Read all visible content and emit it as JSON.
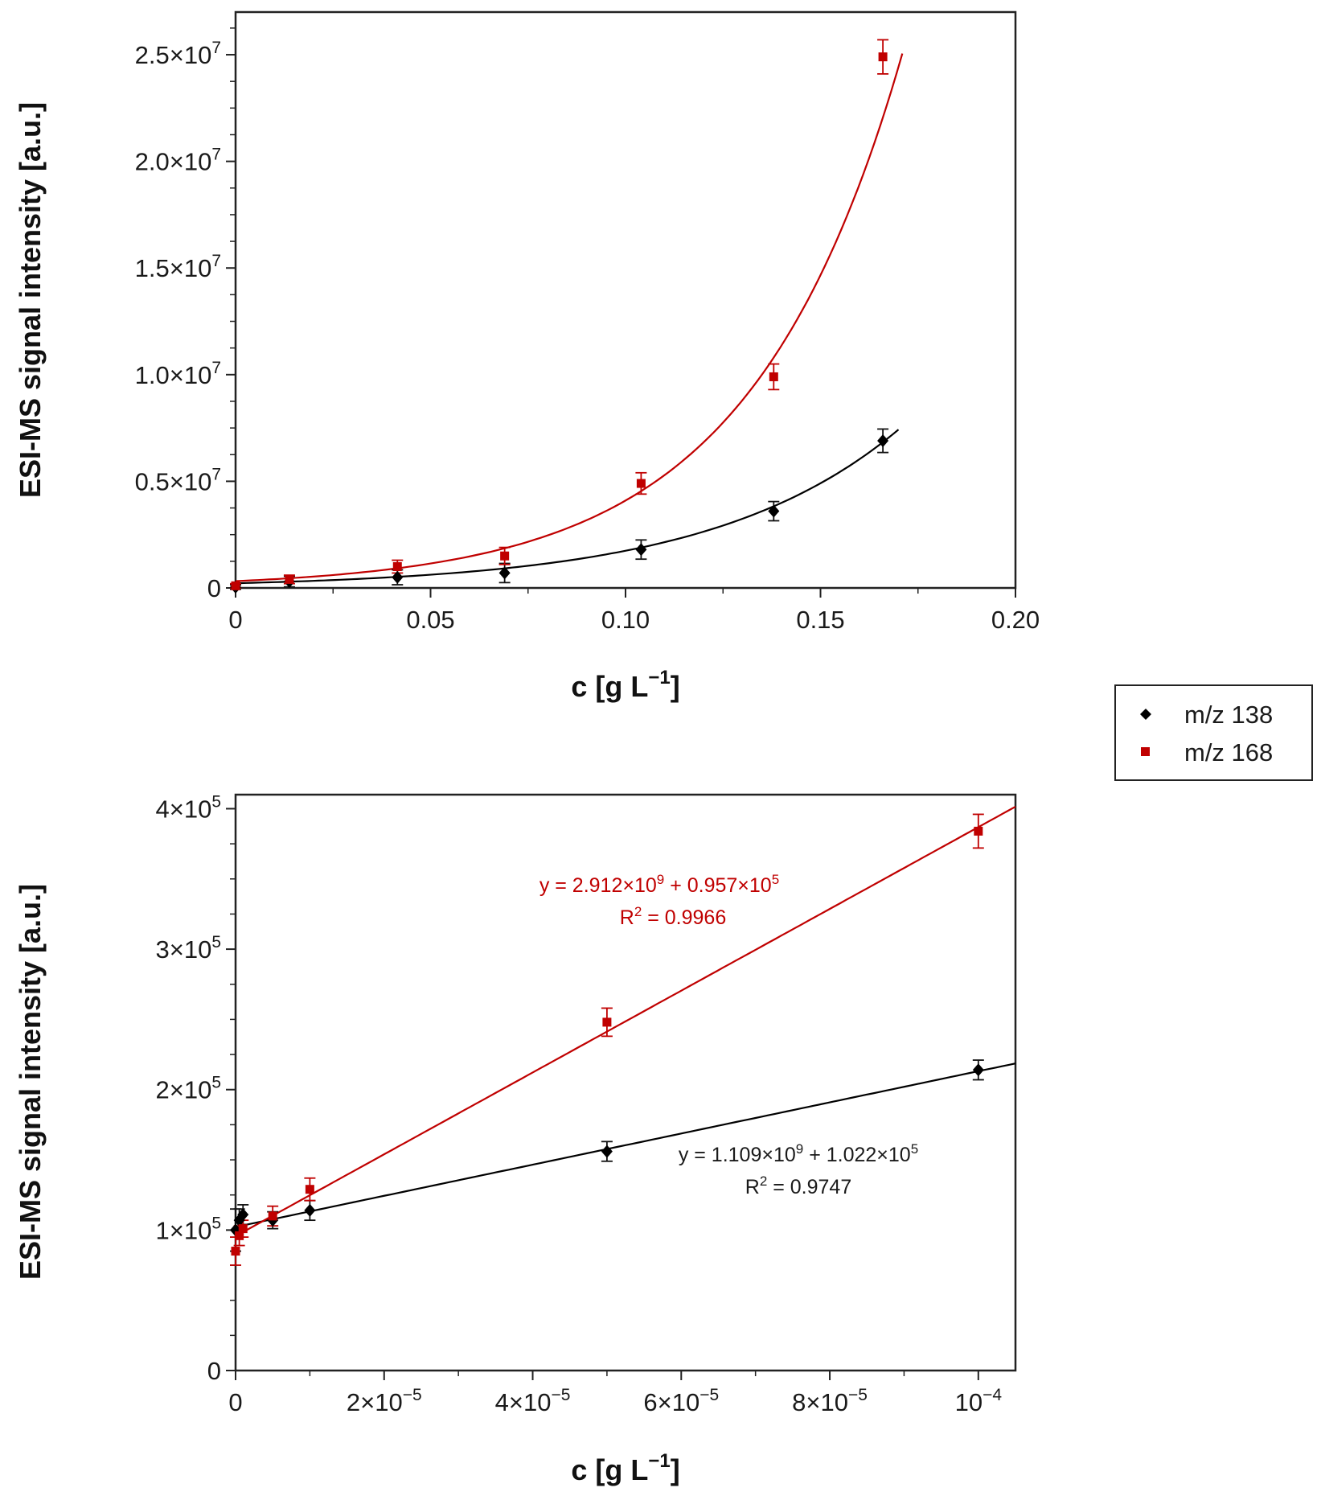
{
  "legend": [
    {
      "label": "m/z 138",
      "color": "#000000",
      "marker": "diamond"
    },
    {
      "label": "m/z 168",
      "color": "#c00000",
      "marker": "square"
    }
  ],
  "chart_data": [
    {
      "type": "scatter",
      "title": "",
      "xlabel": "c [g L",
      "xlabel_sup": "−1",
      "xlabel_end": "]",
      "ylabel": "ESI-MS signal intensity [a.u.]",
      "xlim": [
        0,
        0.2
      ],
      "ylim": [
        0,
        27000000
      ],
      "xticks": [
        {
          "v": 0,
          "label": "0"
        },
        {
          "v": 0.05,
          "label": "0.05"
        },
        {
          "v": 0.1,
          "label": "0.10"
        },
        {
          "v": 0.15,
          "label": "0.15"
        },
        {
          "v": 0.2,
          "label": "0.20"
        }
      ],
      "yticks": [
        {
          "v": 0,
          "base": "0",
          "exp": ""
        },
        {
          "v": 5000000,
          "base": "0.5×10",
          "exp": "7"
        },
        {
          "v": 10000000,
          "base": "1.0×10",
          "exp": "7"
        },
        {
          "v": 15000000,
          "base": "1.5×10",
          "exp": "7"
        },
        {
          "v": 20000000,
          "base": "2.0×10",
          "exp": "7"
        },
        {
          "v": 25000000,
          "base": "2.5×10",
          "exp": "7"
        }
      ],
      "series": [
        {
          "name": "m/z 138",
          "color": "#000000",
          "marker": "diamond",
          "x": [
            0,
            0.0138,
            0.0415,
            0.069,
            0.104,
            0.138,
            0.166
          ],
          "y": [
            40000,
            300000,
            500000,
            700000,
            1800000,
            3600000,
            6900000
          ],
          "err": [
            100000,
            250000,
            350000,
            450000,
            450000,
            450000,
            550000
          ],
          "fit": {
            "type": "exp",
            "a": 220000,
            "b": 20.7,
            "xmax": 0.17
          }
        },
        {
          "name": "m/z 168",
          "color": "#c00000",
          "marker": "square",
          "x": [
            0,
            0.0138,
            0.0415,
            0.069,
            0.104,
            0.138,
            0.166
          ],
          "y": [
            100000,
            400000,
            1000000,
            1500000,
            4900000,
            9900000,
            24900000
          ],
          "err": [
            100000,
            200000,
            300000,
            400000,
            500000,
            600000,
            800000
          ],
          "fit": {
            "type": "exp",
            "a": 320000,
            "b": 25.5,
            "xmax": 0.171
          }
        }
      ]
    },
    {
      "type": "scatter",
      "title": "",
      "xlabel": "c [g L",
      "xlabel_sup": "−1",
      "xlabel_end": "]",
      "ylabel": "ESI-MS signal intensity [a.u.]",
      "xlim": [
        0,
        0.000105
      ],
      "ylim": [
        0,
        410000
      ],
      "xticks": [
        {
          "v": 0,
          "base": "0",
          "exp": ""
        },
        {
          "v": 2e-05,
          "base": "2×10",
          "exp": "−5"
        },
        {
          "v": 4e-05,
          "base": "4×10",
          "exp": "−5"
        },
        {
          "v": 6e-05,
          "base": "6×10",
          "exp": "−5"
        },
        {
          "v": 8e-05,
          "base": "8×10",
          "exp": "−5"
        },
        {
          "v": 0.0001,
          "base": "10",
          "exp": "−4"
        }
      ],
      "yticks": [
        {
          "v": 0,
          "base": "0",
          "exp": ""
        },
        {
          "v": 100000,
          "base": "1×10",
          "exp": "5"
        },
        {
          "v": 200000,
          "base": "2×10",
          "exp": "5"
        },
        {
          "v": 300000,
          "base": "3×10",
          "exp": "5"
        },
        {
          "v": 400000,
          "base": "4×10",
          "exp": "5"
        }
      ],
      "series": [
        {
          "name": "m/z 138",
          "color": "#000000",
          "marker": "diamond",
          "x": [
            0,
            5e-07,
            1e-06,
            5e-06,
            1e-05,
            5e-05,
            0.0001
          ],
          "y": [
            100000,
            107000,
            111000,
            107000,
            114000,
            156000,
            214000
          ],
          "err": [
            15000,
            8000,
            7000,
            6000,
            7000,
            7000,
            7000
          ],
          "fit": {
            "type": "linear",
            "slope": 1109000000,
            "intercept": 102200,
            "xmax": 0.000105
          }
        },
        {
          "name": "m/z 168",
          "color": "#c00000",
          "marker": "square",
          "x": [
            0,
            5e-07,
            1e-06,
            5e-06,
            1e-05,
            5e-05,
            0.0001
          ],
          "y": [
            85000,
            96000,
            101000,
            110000,
            129000,
            248000,
            384000
          ],
          "err": [
            10000,
            7000,
            6000,
            7000,
            8000,
            10000,
            12000
          ],
          "fit": {
            "type": "linear",
            "slope": 2912000000,
            "intercept": 95700,
            "xmax": 0.000105
          }
        }
      ],
      "annotations": [
        {
          "series": "m/z 168",
          "color": "#c00000",
          "eq_a": "y = 2.912×10",
          "eq_a_exp": "9",
          "eq_b": " + 0.957×10",
          "eq_b_exp": "5",
          "r_label": "R",
          "r_exp": "2",
          "r_value": " = 0.9966"
        },
        {
          "series": "m/z 138",
          "color": "#1a1a1a",
          "eq_a": "y = 1.109×10",
          "eq_a_exp": "9",
          "eq_b": " + 1.022×10",
          "eq_b_exp": "5",
          "r_label": "R",
          "r_exp": "2",
          "r_value": " = 0.9747"
        }
      ]
    }
  ]
}
